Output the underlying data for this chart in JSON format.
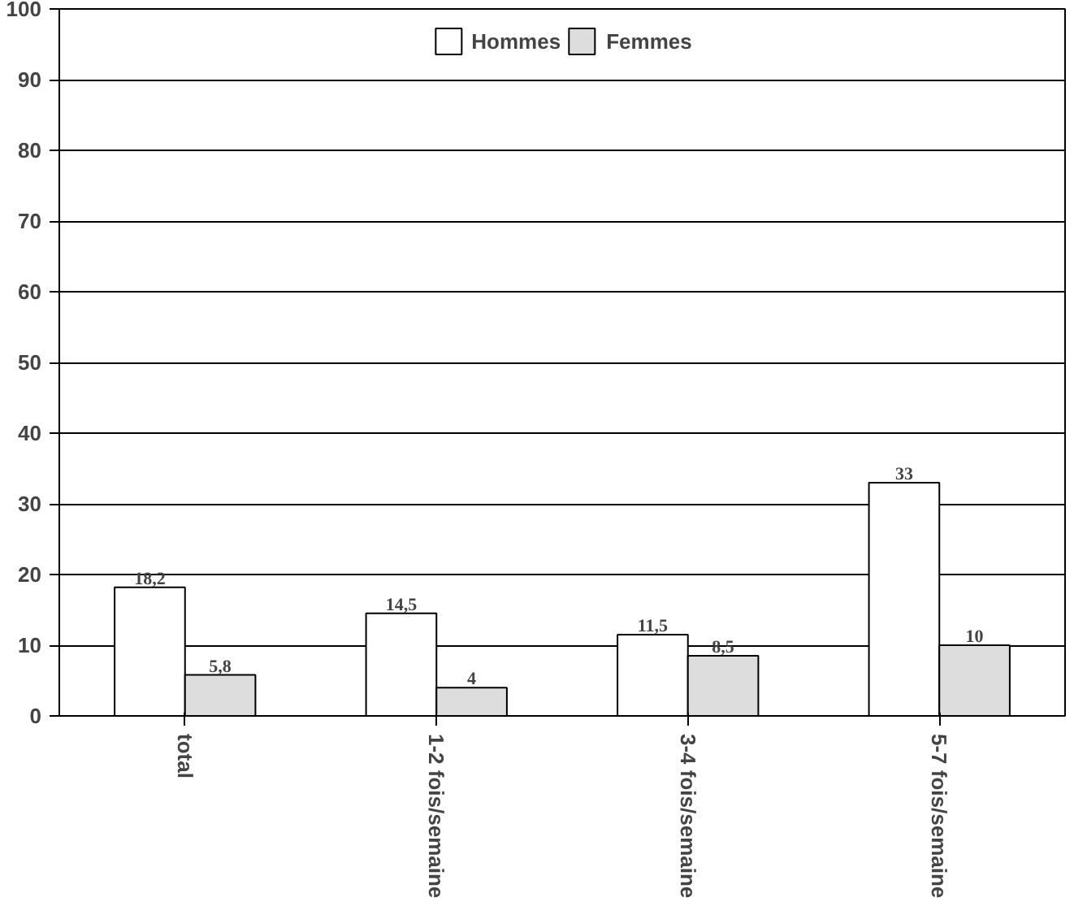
{
  "chart_data": {
    "type": "bar",
    "categories": [
      "total",
      "1-2 fois/semaine",
      "3-4 fois/semaine",
      "5-7 fois/semaine"
    ],
    "series": [
      {
        "name": "Hommes",
        "color": "#ffffff",
        "values": [
          18.2,
          14.5,
          11.5,
          33
        ],
        "value_labels": [
          "18,2",
          "14,5",
          "11,5",
          "33"
        ]
      },
      {
        "name": "Femmes",
        "color": "#dddddd",
        "values": [
          5.8,
          4,
          8.5,
          10
        ],
        "value_labels": [
          "5,8",
          "4",
          "8,5",
          "10"
        ]
      }
    ],
    "ylim": [
      0,
      100
    ],
    "yticks": [
      0,
      10,
      20,
      30,
      40,
      50,
      60,
      70,
      80,
      90,
      100
    ],
    "grid": "y",
    "legend": "top"
  }
}
